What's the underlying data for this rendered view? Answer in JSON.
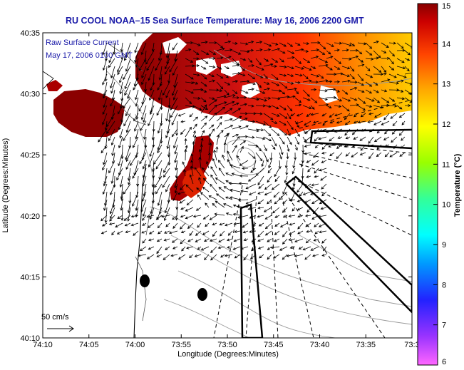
{
  "title": "RU COOL  NOAA–15  Sea Surface Temperature:  May 16, 2006 2200 GMT",
  "legend": {
    "line1": "Raw Surface Current",
    "line2": "May 17, 2006 0100 GMT",
    "scale_label": "50 cm/s"
  },
  "axes": {
    "xlabel": "Longitude (Degrees:Minutes)",
    "ylabel": "Latitude (Degrees:Minutes)",
    "x_ticks": [
      "74:10",
      "74:05",
      "74:00",
      "73:55",
      "73:50",
      "73:45",
      "73:40",
      "73:35",
      "73:3"
    ],
    "y_ticks": [
      "40:35",
      "40:30",
      "40:25",
      "40:20",
      "40:15",
      "40:10"
    ]
  },
  "colorbar": {
    "label": "Temperature (°C)",
    "ticks": [
      "15",
      "14",
      "13",
      "12",
      "11",
      "10",
      "9",
      "8",
      "7",
      "6"
    ],
    "range": [
      6,
      15
    ],
    "colors": [
      "#ff66ff",
      "#9933ff",
      "#2222ff",
      "#0099ff",
      "#00ffff",
      "#33ff99",
      "#99ff00",
      "#ffff00",
      "#ffaa00",
      "#ff4400",
      "#cc0000",
      "#880000"
    ]
  },
  "features": {
    "stations": [
      "station-marker-1",
      "station-marker-2"
    ]
  }
}
